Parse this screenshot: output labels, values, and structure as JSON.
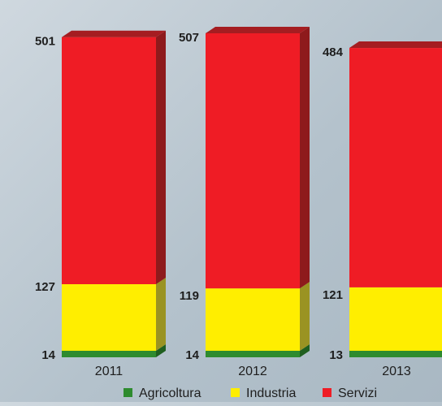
{
  "chart_data": {
    "type": "bar",
    "stacked": true,
    "three_d": true,
    "categories": [
      "2011",
      "2012",
      "2013"
    ],
    "series": [
      {
        "name": "Agricoltura",
        "values": [
          14,
          14,
          13
        ],
        "color": "#2e8b2e",
        "side_color": "#1f5f1f",
        "top_color": "#3aa53a"
      },
      {
        "name": "Industria",
        "values": [
          127,
          119,
          121
        ],
        "color": "#ffee00",
        "side_color": "#9a9322",
        "top_color": "#fff46a"
      },
      {
        "name": "Servizi",
        "values": [
          501,
          507,
          484
        ],
        "color": "#ef1c25",
        "side_color": "#8e1a1c",
        "top_color": "#a51d21"
      }
    ],
    "data_labels": [
      [
        "14",
        "127",
        "501"
      ],
      [
        "14",
        "119",
        "507"
      ],
      [
        "13",
        "121",
        "484"
      ]
    ],
    "legend_placement": "bottom",
    "grid": false,
    "background_color": "#b9c6cf"
  }
}
